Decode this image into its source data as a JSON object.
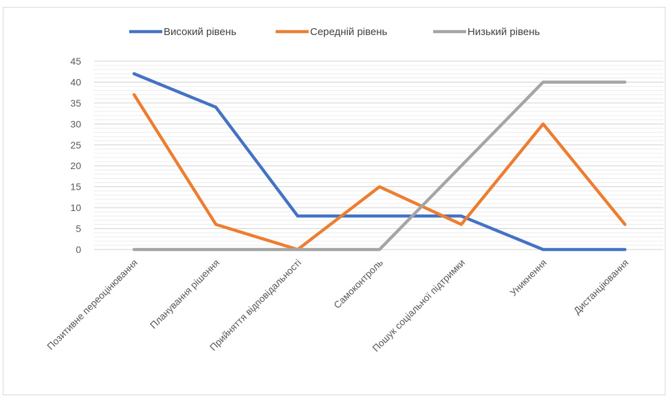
{
  "chart_data": {
    "type": "line",
    "categories": [
      "Позитивне переоцінювання",
      "Планування рішення",
      "Прийняття відповідальності",
      "Самоконтроль",
      "Пошук соціальної підтримки",
      "Уникнення",
      "Дистанціювання"
    ],
    "series": [
      {
        "name": "Високий рівень",
        "color": "#4472c4",
        "values": [
          42,
          34,
          8,
          8,
          8,
          0,
          0
        ]
      },
      {
        "name": "Середній рівень",
        "color": "#ed7d31",
        "values": [
          37,
          6,
          0,
          15,
          6,
          30,
          6
        ]
      },
      {
        "name": "Низький рівень",
        "color": "#a5a5a5",
        "values": [
          0,
          0,
          0,
          0,
          20,
          40,
          40
        ]
      }
    ],
    "ylim": [
      0,
      45
    ],
    "yticks": [
      "0",
      "5",
      "10",
      "15",
      "20",
      "25",
      "30",
      "35",
      "40",
      "45"
    ],
    "grid": true,
    "legend_position": "top-center"
  }
}
